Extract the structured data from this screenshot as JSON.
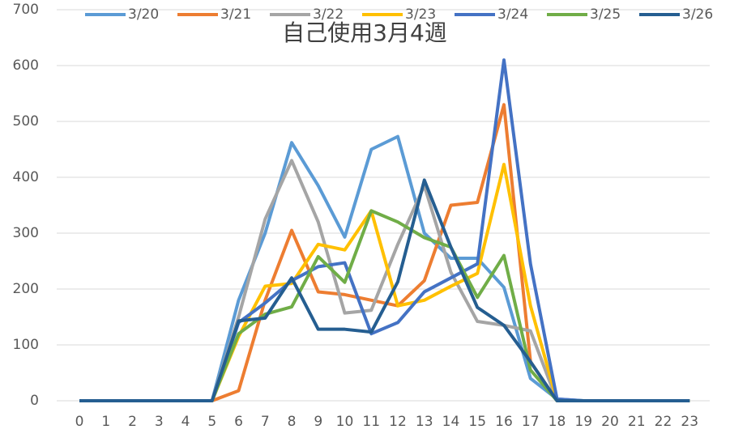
{
  "chart_data": {
    "type": "line",
    "title": "自己使用3月4週",
    "categories": [
      "0",
      "1",
      "2",
      "3",
      "4",
      "5",
      "6",
      "7",
      "8",
      "9",
      "10",
      "11",
      "12",
      "13",
      "14",
      "15",
      "16",
      "17",
      "18",
      "19",
      "20",
      "21",
      "22",
      "23"
    ],
    "series": [
      {
        "name": "3/20",
        "color": "#5b9bd5",
        "values": [
          0,
          0,
          0,
          0,
          0,
          0,
          180,
          300,
          462,
          385,
          293,
          450,
          473,
          300,
          255,
          255,
          203,
          40,
          3,
          0,
          0,
          0,
          0,
          0
        ]
      },
      {
        "name": "3/21",
        "color": "#ed7d31",
        "values": [
          0,
          0,
          0,
          0,
          0,
          0,
          18,
          180,
          305,
          195,
          190,
          180,
          170,
          215,
          350,
          355,
          530,
          70,
          0,
          0,
          0,
          0,
          0,
          0
        ]
      },
      {
        "name": "3/22",
        "color": "#a5a5a5",
        "values": [
          0,
          0,
          0,
          0,
          0,
          0,
          150,
          325,
          430,
          320,
          157,
          162,
          280,
          385,
          230,
          142,
          135,
          125,
          0,
          0,
          0,
          0,
          0,
          0
        ]
      },
      {
        "name": "3/23",
        "color": "#ffc000",
        "values": [
          0,
          0,
          0,
          0,
          0,
          0,
          115,
          205,
          210,
          280,
          270,
          340,
          170,
          180,
          205,
          228,
          423,
          170,
          0,
          0,
          0,
          0,
          0,
          0
        ]
      },
      {
        "name": "3/24",
        "color": "#4472c4",
        "values": [
          0,
          0,
          0,
          0,
          0,
          0,
          140,
          175,
          215,
          240,
          247,
          120,
          140,
          195,
          220,
          245,
          610,
          245,
          3,
          0,
          0,
          0,
          0,
          0
        ]
      },
      {
        "name": "3/25",
        "color": "#70ad47",
        "values": [
          0,
          0,
          0,
          0,
          0,
          0,
          120,
          155,
          168,
          258,
          212,
          340,
          320,
          292,
          275,
          185,
          260,
          55,
          0,
          0,
          0,
          0,
          0,
          0
        ]
      },
      {
        "name": "3/26",
        "color": "#255e91",
        "values": [
          0,
          0,
          0,
          0,
          0,
          0,
          143,
          148,
          220,
          128,
          128,
          123,
          213,
          395,
          275,
          167,
          135,
          70,
          0,
          0,
          0,
          0,
          0,
          0
        ]
      }
    ],
    "ylim": [
      0,
      700
    ],
    "yticks": [
      0,
      100,
      200,
      300,
      400,
      500,
      600,
      700
    ],
    "grid": true,
    "legend": "top"
  }
}
